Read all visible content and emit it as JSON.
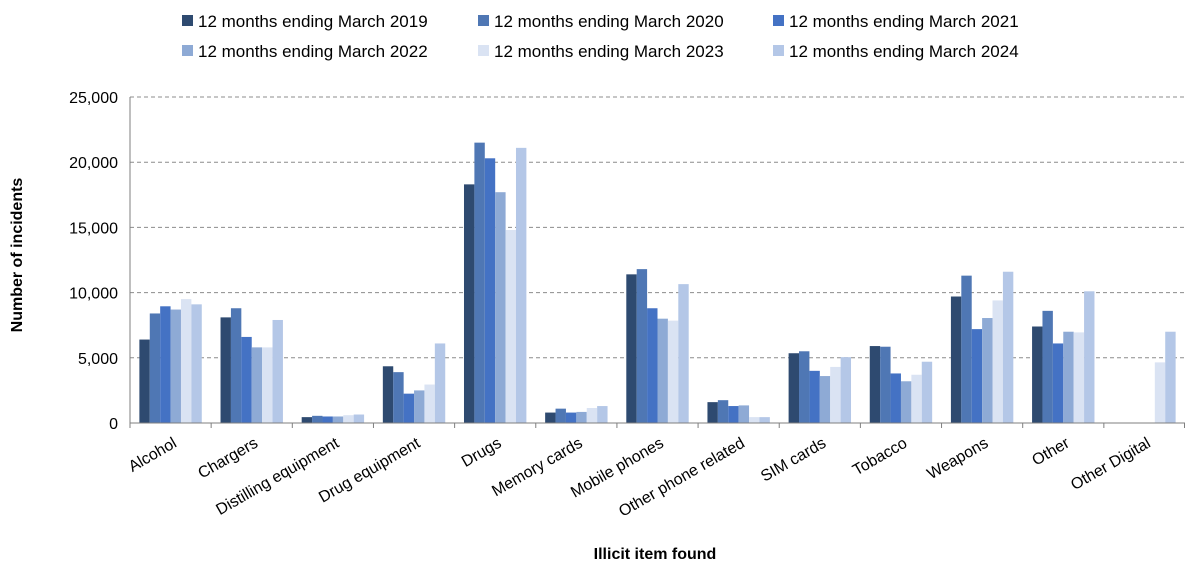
{
  "chart_data": {
    "type": "bar",
    "title": "",
    "xlabel": "Illicit item found",
    "ylabel": "Number of incidents",
    "ylim": [
      0,
      25000
    ],
    "yticks": [
      0,
      5000,
      10000,
      15000,
      20000,
      25000
    ],
    "ytick_labels": [
      "0",
      "5,000",
      "10,000",
      "15,000",
      "20,000",
      "25,000"
    ],
    "grid": true,
    "legend_position": "top",
    "categories": [
      "Alcohol",
      "Chargers",
      "Distilling equipment",
      "Drug equipment",
      "Drugs",
      "Memory cards",
      "Mobile phones",
      "Other phone related",
      "SIM cards",
      "Tobacco",
      "Weapons",
      "Other",
      "Other Digital"
    ],
    "series": [
      {
        "name": "12 months ending March 2019",
        "color": "#2e4a70",
        "values": [
          6400,
          8100,
          450,
          4350,
          18300,
          800,
          11400,
          1600,
          5350,
          5900,
          9700,
          7400,
          null
        ]
      },
      {
        "name": "12 months ending March 2020",
        "color": "#4f77b4",
        "values": [
          8400,
          8800,
          550,
          3900,
          21500,
          1100,
          11800,
          1750,
          5500,
          5850,
          11300,
          8600,
          null
        ]
      },
      {
        "name": "12 months ending March 2021",
        "color": "#4472c4",
        "values": [
          8950,
          6600,
          500,
          2250,
          20300,
          800,
          8800,
          1300,
          4000,
          3800,
          7200,
          6100,
          null
        ]
      },
      {
        "name": "12 months ending March 2022",
        "color": "#8eaad5",
        "values": [
          8700,
          5800,
          500,
          2500,
          17700,
          850,
          8000,
          1350,
          3600,
          3200,
          8050,
          7000,
          null
        ]
      },
      {
        "name": "12 months ending March 2023",
        "color": "#dae3f3",
        "values": [
          9500,
          5800,
          600,
          2950,
          14800,
          1150,
          7850,
          450,
          4300,
          3700,
          9400,
          6950,
          4650
        ]
      },
      {
        "name": "12 months ending March 2024",
        "color": "#b4c7e7",
        "values": [
          9100,
          7900,
          650,
          6100,
          21100,
          1300,
          10650,
          450,
          5050,
          4700,
          11600,
          10100,
          7000
        ]
      }
    ]
  }
}
